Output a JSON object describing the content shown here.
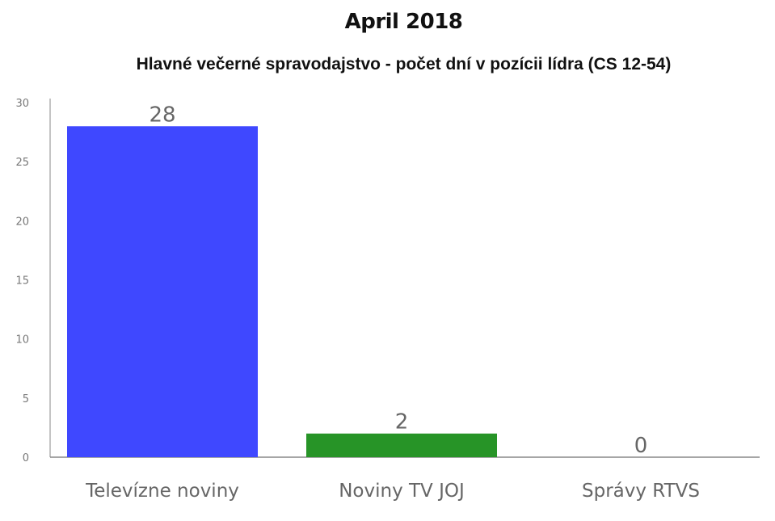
{
  "chart_data": {
    "type": "bar",
    "title": "April 2018",
    "subtitle": "Hlavné večerné spravodajstvo - počet dní v pozícii lídra (CS 12-54)",
    "categories": [
      "Televízne noviny",
      "Noviny TV JOJ",
      "Správy RTVS"
    ],
    "values": [
      28,
      2,
      0
    ],
    "data_labels": [
      "28",
      "2",
      "0"
    ],
    "colors": [
      "#3f48ff",
      "#279427",
      "#279427"
    ],
    "ylim": [
      0,
      30
    ],
    "yticks": [
      "0",
      "5",
      "10",
      "15",
      "20",
      "25",
      "30"
    ],
    "xlabel": "",
    "ylabel": "",
    "grid": false,
    "legend": "none"
  }
}
